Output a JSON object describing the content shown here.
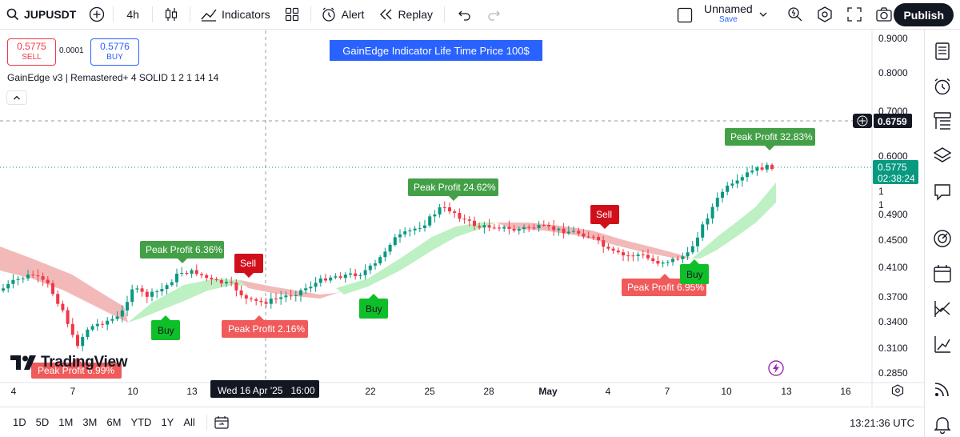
{
  "toolbar": {
    "symbol": "JUPUSDT",
    "interval": "4h",
    "indicators_label": "Indicators",
    "alert_label": "Alert",
    "replay_label": "Replay",
    "layout_name": "Unnamed",
    "layout_save": "Save",
    "publish_label": "Publish"
  },
  "order_panel": {
    "sell_price": "0.5775",
    "sell_label": "SELL",
    "spread": "0.0001",
    "buy_price": "0.5776",
    "buy_label": "BUY"
  },
  "indicator": {
    "title": "GainEdge v3 | Remastered+ 4 SOLID 1 2 1 14 14",
    "banner": "GainEdge Indicator Life Time Price 100$"
  },
  "price_axis": {
    "ticks": [
      "0.9000",
      "0.8000",
      "0.7000",
      "0.6000",
      "0.4900",
      "0.4500",
      "0.4100",
      "0.3700",
      "0.3400",
      "0.3100",
      "0.2850"
    ],
    "crosshair_price": "0.6759",
    "last_price": "0.5775",
    "countdown": "02:38:24",
    "extra_1": "1",
    "extra_2": "1"
  },
  "time_axis": {
    "ticks": [
      "4",
      "7",
      "10",
      "13",
      "22",
      "25",
      "28",
      "May",
      "4",
      "7",
      "10",
      "13",
      "16"
    ],
    "crosshair_label": "Wed 16 Apr '25   16:00"
  },
  "signals": {
    "peak1": "Peak Profit 6.36%",
    "peak2": "Peak Profit 24.62%",
    "peak3": "Peak Profit 32.83%",
    "peak4": "Peak Profit 2.16%",
    "peak5": "Peak Profit 6.95%",
    "peak6": "Peak Profit 6.99%",
    "sell": "Sell",
    "buy": "Buy"
  },
  "logo_text": "TradingView",
  "bottom": {
    "ranges": [
      "1D",
      "5D",
      "1M",
      "3M",
      "6M",
      "YTD",
      "1Y",
      "All"
    ],
    "clock": "13:21:36 UTC"
  },
  "colors": {
    "up": "#089981",
    "down": "#f23645",
    "buy_signal": "#0fbf2a",
    "sell_signal": "#d10f1b",
    "peak_up": "#43a047",
    "peak_down": "#f05a5a",
    "banner": "#2962ff",
    "cloud_up": "#bdf0c3",
    "cloud_down": "#f3b9b9",
    "price_tag": "#089981"
  }
}
